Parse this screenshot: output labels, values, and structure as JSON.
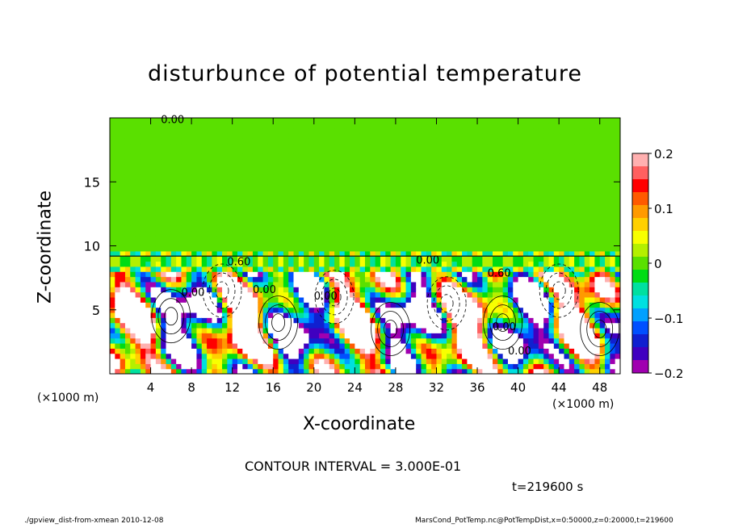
{
  "chart_data": {
    "type": "heatmap",
    "title": "disturbunce of potential temperature",
    "xlabel": "X-coordinate",
    "ylabel": "Z-coordinate",
    "x_unit_label_left": "(×1000 m)",
    "x_unit_label_right": "(×1000 m)",
    "x_ticks": [
      4,
      8,
      12,
      16,
      20,
      24,
      28,
      32,
      36,
      40,
      44,
      48
    ],
    "y_ticks": [
      5,
      10,
      15
    ],
    "xlim": [
      0,
      50
    ],
    "ylim": [
      0,
      20
    ],
    "colorbar": {
      "ticks": [
        "0.2",
        "0.1",
        "0",
        "−0.1",
        "−0.2"
      ],
      "tick_values": [
        0.2,
        0.1,
        0,
        -0.1,
        -0.2
      ],
      "range": [
        -0.2,
        0.2
      ],
      "colors": [
        "#ffb0b0",
        "#ff6060",
        "#ff0000",
        "#ff5a00",
        "#ff9a00",
        "#ffd000",
        "#f8ff00",
        "#b4f000",
        "#5ae000",
        "#00dc14",
        "#00e0a0",
        "#00e0e0",
        "#00a0ff",
        "#0050ff",
        "#1020d0",
        "#4000c0",
        "#a000b0"
      ]
    },
    "contour_labels": [
      "0.00",
      "0.60",
      "0.00",
      "0.00",
      "0.60",
      "0.00",
      "0.00",
      "0.00",
      "0.00"
    ],
    "contour_interval": "CONTOUR INTERVAL = 3.000E-01",
    "time": "t=219600 s",
    "background_value": 0,
    "layer_top_z": 9.2
  },
  "footer": {
    "left": "./gpview_dist-from-xmean  2010-12-08",
    "right": "MarsCond_PotTemp.nc@PotTempDist,x=0:50000,z=0:20000,t=219600"
  }
}
